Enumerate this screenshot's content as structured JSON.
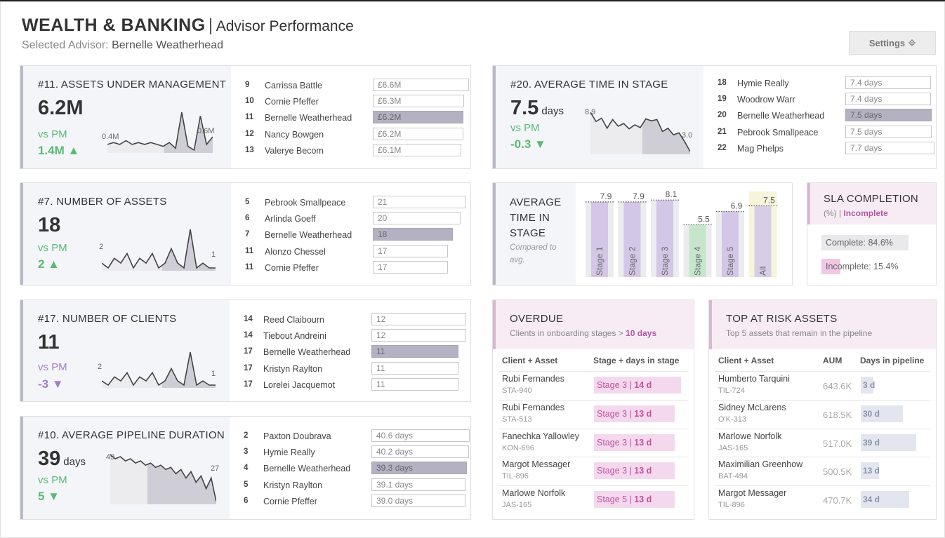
{
  "header": {
    "title": "WEALTH & BANKING",
    "separator": "|",
    "subtitle": "Advisor Performance",
    "selected_label": "Selected Advisor:",
    "selected_name": "Bernelle Weatherhead",
    "settings_label": "Settings",
    "settings_icon": "gear-icon"
  },
  "colors": {
    "positive": "#5aba76",
    "negative": "#a07fc8",
    "selected_bar": "#b4b2c2",
    "accent_pink": "#c2519f"
  },
  "kpis": [
    {
      "rank": "#11.",
      "title": "ASSETS UNDER MANAGEMENT",
      "value": "6.2M",
      "unit": "",
      "vs": "vs PM",
      "delta": "1.4M ▲",
      "direction": "up",
      "spark_start": "0.4M",
      "spark_end": "0.6M",
      "spark": [
        5,
        6,
        5,
        7,
        5,
        6,
        5,
        6,
        5,
        4,
        6,
        3,
        22,
        4,
        2,
        20,
        5,
        9
      ],
      "ranking": [
        {
          "rank": "9",
          "name": "Carrissa Battle",
          "value": "£6.6M",
          "frac": 1.0,
          "selected": false
        },
        {
          "rank": "10",
          "name": "Cornie Pfeffer",
          "value": "£6.3M",
          "frac": 0.95,
          "selected": false
        },
        {
          "rank": "11",
          "name": "Bernelle Weatherhead",
          "value": "£6.2M",
          "frac": 0.94,
          "selected": true
        },
        {
          "rank": "12",
          "name": "Nancy Bowgen",
          "value": "£6.2M",
          "frac": 0.94,
          "selected": false
        },
        {
          "rank": "13",
          "name": "Valerye Becom",
          "value": "£6.1M",
          "frac": 0.92,
          "selected": false
        }
      ]
    },
    {
      "rank": "#7.",
      "title": "NUMBER OF ASSETS",
      "value": "18",
      "unit": "",
      "vs": "vs PM",
      "delta": "2 ▲",
      "direction": "up",
      "spark_start": "2",
      "spark_end": "1",
      "spark": [
        2,
        1,
        3,
        2,
        4,
        1,
        3,
        2,
        4,
        1,
        2,
        5,
        2,
        1,
        9,
        1,
        2,
        1,
        1
      ],
      "ranking": [
        {
          "rank": "5",
          "name": "Pebrook Smallpeace",
          "value": "21",
          "frac": 1.0,
          "selected": false
        },
        {
          "rank": "6",
          "name": "Arlinda Goeff",
          "value": "20",
          "frac": 0.95,
          "selected": false
        },
        {
          "rank": "7",
          "name": "Bernelle Weatherhead",
          "value": "18",
          "frac": 0.86,
          "selected": true
        },
        {
          "rank": "11",
          "name": "Alonzo Chessel",
          "value": "17",
          "frac": 0.81,
          "selected": false
        },
        {
          "rank": "11",
          "name": "Cornie Pfeffer",
          "value": "17",
          "frac": 0.81,
          "selected": false
        }
      ]
    },
    {
      "rank": "#17.",
      "title": "NUMBER OF CLIENTS",
      "value": "11",
      "unit": "",
      "vs": "vs PM",
      "delta": "-3 ▼",
      "direction": "down",
      "spark_start": "2",
      "spark_end": "1",
      "spark": [
        2,
        1,
        3,
        2,
        4,
        1,
        3,
        2,
        4,
        1,
        2,
        5,
        2,
        1,
        9,
        1,
        2,
        1,
        1
      ],
      "ranking": [
        {
          "rank": "14",
          "name": "Reed Claibourn",
          "value": "12",
          "frac": 1.0,
          "selected": false
        },
        {
          "rank": "14",
          "name": "Tiebout Andreini",
          "value": "12",
          "frac": 1.0,
          "selected": false
        },
        {
          "rank": "17",
          "name": "Bernelle Weatherhead",
          "value": "11",
          "frac": 0.92,
          "selected": true
        },
        {
          "rank": "17",
          "name": "Kristyn Raylton",
          "value": "11",
          "frac": 0.92,
          "selected": false
        },
        {
          "rank": "17",
          "name": "Lorelei Jacquemot",
          "value": "11",
          "frac": 0.92,
          "selected": false
        }
      ]
    },
    {
      "rank": "#10.",
      "title": "AVERAGE PIPELINE DURATION",
      "value": "39",
      "unit": "days",
      "vs": "vs PM",
      "delta": "5 ▼",
      "direction": "up",
      "spark_start": "49",
      "spark_end": "27",
      "spark": [
        49,
        47,
        48,
        46,
        47,
        45,
        46,
        44,
        45,
        43,
        44,
        42,
        43,
        40,
        42,
        38,
        41,
        36,
        39,
        33,
        38,
        27
      ],
      "ranking": [
        {
          "rank": "2",
          "name": "Paxton Doubrava",
          "value": "40.6 days",
          "frac": 1.0,
          "selected": false
        },
        {
          "rank": "3",
          "name": "Hymie Really",
          "value": "40.2 days",
          "frac": 0.99,
          "selected": false
        },
        {
          "rank": "4",
          "name": "Bernelle Weatherhead",
          "value": "39.3 days",
          "frac": 0.97,
          "selected": true
        },
        {
          "rank": "5",
          "name": "Kristyn Raylton",
          "value": "39.1 days",
          "frac": 0.96,
          "selected": false
        },
        {
          "rank": "6",
          "name": "Cornie Pfeffer",
          "value": "39.0 days",
          "frac": 0.96,
          "selected": false
        }
      ]
    },
    {
      "rank": "#20.",
      "title": "AVERAGE TIME IN STAGE",
      "value": "7.5",
      "unit": "days",
      "vs": "vs PM",
      "delta": "-0.3 ▼",
      "direction": "up",
      "spark_start": "8.9",
      "spark_end": "3.0",
      "spark": [
        8.9,
        7.5,
        8.0,
        6.5,
        7.8,
        6.8,
        7.2,
        6.4,
        7.0,
        6.6,
        7.9,
        7.6,
        7.8,
        6.0,
        6.5,
        5.5,
        5.8,
        4.5,
        3.0
      ],
      "ranking": [
        {
          "rank": "18",
          "name": "Hymie Really",
          "value": "7.4 days",
          "frac": 0.96,
          "selected": false
        },
        {
          "rank": "19",
          "name": "Woodrow Warr",
          "value": "7.4 days",
          "frac": 0.96,
          "selected": false
        },
        {
          "rank": "20",
          "name": "Bernelle Weatherhead",
          "value": "7.5 days",
          "frac": 0.97,
          "selected": true
        },
        {
          "rank": "21",
          "name": "Pebrook Smallpeace",
          "value": "7.5 days",
          "frac": 0.97,
          "selected": false
        },
        {
          "rank": "22",
          "name": "Mag Phelps",
          "value": "7.7 days",
          "frac": 1.0,
          "selected": false
        }
      ]
    }
  ],
  "stage_panel": {
    "title": "AVERAGE TIME IN STAGE",
    "title_lines": [
      "AVERAGE",
      "TIME IN",
      "STAGE"
    ],
    "note": "Compared to avg.",
    "note_lines": [
      "Compared to",
      "avg."
    ]
  },
  "chart_data": {
    "type": "bar",
    "categories": [
      "Stage 1",
      "Stage 2",
      "Stage 3",
      "Stage 4",
      "Stage 5",
      "All"
    ],
    "values": [
      7.9,
      7.9,
      8.1,
      5.5,
      6.9,
      7.5
    ],
    "title": "AVERAGE TIME IN STAGE",
    "ylim": [
      0,
      9
    ],
    "legend": "none",
    "grid": false
  },
  "sla": {
    "title": "SLA COMPLETION",
    "subtitle_prefix": "(%) |",
    "subtitle_highlight": "Incomplete",
    "complete_label": "Complete: 84.6%",
    "complete_frac": 0.846,
    "incomplete_label": "Incomplete: 15.4%",
    "incomplete_frac": 0.154
  },
  "overdue": {
    "title": "OVERDUE",
    "subtitle": "Clients in onboarding stages >",
    "subtitle_highlight": "10 days",
    "col1": "Client + Asset",
    "col2": "Stage + days in stage",
    "rows": [
      {
        "name": "Rubi Fernandes",
        "code": "STA-940",
        "stage": "Stage 3 |",
        "days": "14 d",
        "frac": 1.0
      },
      {
        "name": "Rubi Fernandes",
        "code": "STA-513",
        "stage": "Stage 3 |",
        "days": "13 d",
        "frac": 0.93
      },
      {
        "name": "Fanechka Yallowley",
        "code": "KON-696",
        "stage": "Stage 3 |",
        "days": "13 d",
        "frac": 0.93
      },
      {
        "name": "Margot Messager",
        "code": "TIL-896",
        "stage": "Stage 3 |",
        "days": "13 d",
        "frac": 0.93
      },
      {
        "name": "Marlowe Norfolk",
        "code": "JAS-165",
        "stage": "Stage 5 |",
        "days": "13 d",
        "frac": 0.93
      }
    ]
  },
  "at_risk": {
    "title": "TOP AT RISK ASSETS",
    "subtitle": "Top 5 assets that remain in the pipeline",
    "col1": "Client + Asset",
    "col2": "AUM",
    "col3": "Days in pipeline",
    "rows": [
      {
        "name": "Humberto Tarquini",
        "code": "TIL-724",
        "aum": "643.6K",
        "days": "3 d",
        "frac": 0.2
      },
      {
        "name": "Sidney McLarens",
        "code": "O'K-313",
        "aum": "618.5K",
        "days": "30 d",
        "frac": 0.68
      },
      {
        "name": "Marlowe Norfolk",
        "code": "JAS-165",
        "aum": "517.0K",
        "days": "39 d",
        "frac": 0.9
      },
      {
        "name": "Maximilian Greenhow",
        "code": "BAT-494",
        "aum": "500.5K",
        "days": "13 d",
        "frac": 0.3
      },
      {
        "name": "Margot Messager",
        "code": "TIL-896",
        "aum": "470.7K",
        "days": "34 d",
        "frac": 0.78
      }
    ]
  }
}
